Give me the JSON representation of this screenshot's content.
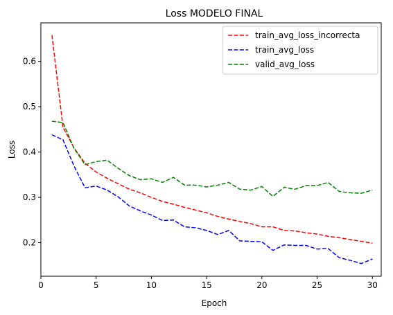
{
  "chart_data": {
    "type": "line",
    "title": "Loss  MODELO FINAL",
    "xlabel": "Epoch",
    "ylabel": "Loss",
    "xlim": [
      0.0,
      30.8
    ],
    "ylim": [
      0.126,
      0.685
    ],
    "xticks": [
      0,
      5,
      10,
      15,
      20,
      25,
      30
    ],
    "yticks": [
      0.2,
      0.3,
      0.4,
      0.5,
      0.6
    ],
    "ytick_labels": [
      "0.2",
      "0.3",
      "0.4",
      "0.5",
      "0.6"
    ],
    "grid": false,
    "legend_position": "top-right",
    "x": [
      1,
      2,
      3,
      4,
      5,
      6,
      7,
      8,
      9,
      10,
      11,
      12,
      13,
      14,
      15,
      16,
      17,
      18,
      19,
      20,
      21,
      22,
      23,
      24,
      25,
      26,
      27,
      28,
      29,
      30
    ],
    "series": [
      {
        "name": "train_avg_loss_incorrecta",
        "color": "#ff0000",
        "values": [
          0.658,
          0.455,
          0.409,
          0.375,
          0.356,
          0.342,
          0.33,
          0.318,
          0.31,
          0.3,
          0.291,
          0.285,
          0.278,
          0.272,
          0.266,
          0.258,
          0.252,
          0.247,
          0.242,
          0.235,
          0.235,
          0.227,
          0.226,
          0.222,
          0.219,
          0.214,
          0.211,
          0.207,
          0.203,
          0.199
        ]
      },
      {
        "name": "train_avg_loss",
        "color": "#0000ff",
        "values": [
          0.438,
          0.427,
          0.369,
          0.321,
          0.325,
          0.316,
          0.301,
          0.281,
          0.27,
          0.261,
          0.249,
          0.25,
          0.235,
          0.233,
          0.227,
          0.218,
          0.227,
          0.204,
          0.203,
          0.202,
          0.183,
          0.195,
          0.194,
          0.194,
          0.186,
          0.187,
          0.167,
          0.161,
          0.154,
          0.164
        ]
      },
      {
        "name": "valid_avg_loss",
        "color": "#008000",
        "values": [
          0.468,
          0.465,
          0.408,
          0.372,
          0.379,
          0.382,
          0.364,
          0.348,
          0.339,
          0.341,
          0.333,
          0.344,
          0.327,
          0.327,
          0.323,
          0.327,
          0.333,
          0.318,
          0.316,
          0.324,
          0.302,
          0.322,
          0.318,
          0.326,
          0.326,
          0.333,
          0.313,
          0.31,
          0.309,
          0.316
        ]
      }
    ]
  }
}
